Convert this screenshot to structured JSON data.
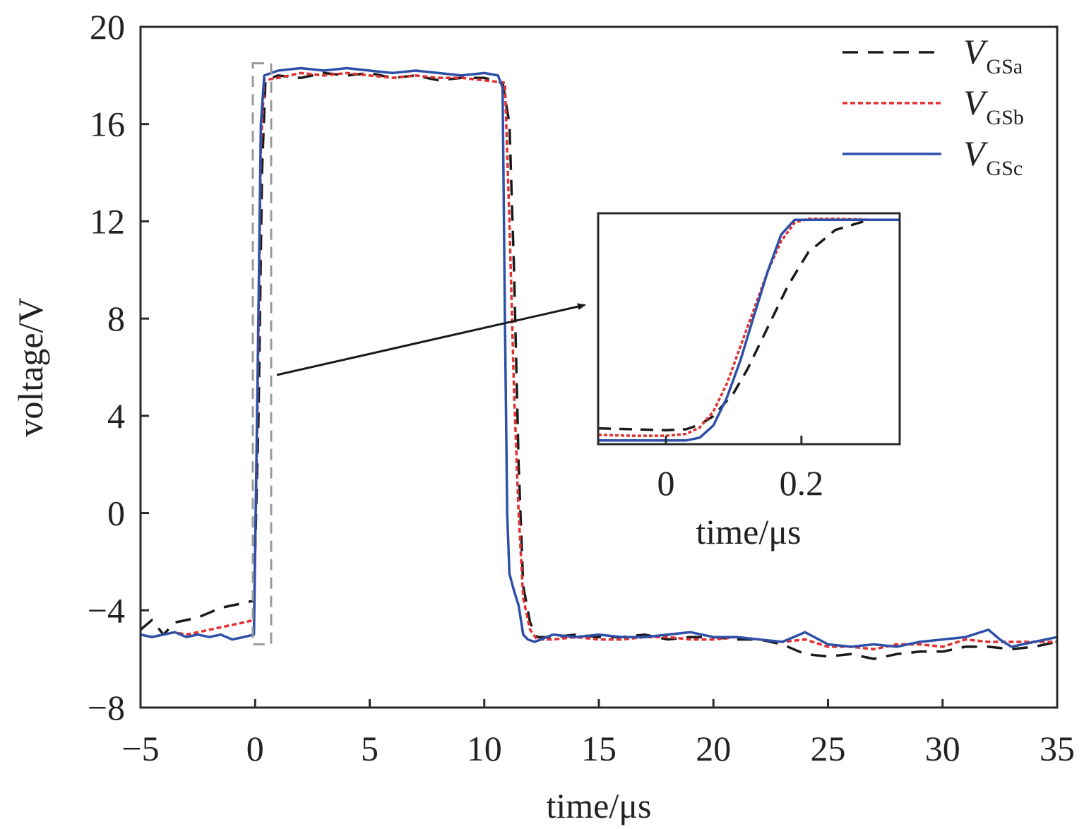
{
  "chart_data": {
    "type": "line",
    "xlabel": "time/μs",
    "ylabel": "voltage/V",
    "xlim": [
      -5,
      35
    ],
    "ylim": [
      -8,
      20
    ],
    "xticks": [
      -5,
      0,
      5,
      10,
      15,
      20,
      25,
      30,
      35
    ],
    "yticks": [
      -8,
      -4,
      0,
      4,
      8,
      12,
      16,
      20
    ],
    "xtick_labels": [
      "−5",
      "0",
      "5",
      "10",
      "15",
      "20",
      "25",
      "30",
      "35"
    ],
    "ytick_labels": [
      "−8",
      "−4",
      "0",
      "4",
      "8",
      "12",
      "16",
      "20"
    ],
    "legend_position": "top-right",
    "series": [
      {
        "name": "V",
        "subscript": "GSa",
        "color": "#1a1a1a",
        "style": "dashed",
        "x": [
          -5,
          -4.5,
          -4,
          -3.5,
          -3,
          -2.5,
          -2,
          -1.5,
          -1,
          -0.5,
          -0.05,
          0.15,
          0.3,
          0.45,
          1,
          2,
          3,
          4,
          5,
          6,
          7,
          8,
          9,
          10,
          10.8,
          11.1,
          11.3,
          11.5,
          11.7,
          12,
          12.3,
          13,
          14,
          15,
          16,
          17,
          18,
          19,
          20,
          21,
          22,
          23,
          24,
          25,
          26,
          27,
          28,
          29,
          30,
          31,
          32,
          33,
          34,
          35
        ],
        "y": [
          -4.8,
          -4.4,
          -5.0,
          -4.5,
          -4.4,
          -4.3,
          -4.1,
          -3.9,
          -3.8,
          -3.7,
          -3.6,
          4,
          14,
          17.8,
          18.0,
          17.9,
          18.1,
          18.0,
          18.1,
          17.9,
          18.0,
          17.8,
          17.9,
          17.9,
          17.7,
          16,
          10,
          2,
          -3,
          -4.5,
          -5.1,
          -5.1,
          -5.0,
          -5.1,
          -5.1,
          -5.0,
          -5.2,
          -5.1,
          -5.1,
          -5.2,
          -5.2,
          -5.4,
          -5.8,
          -5.9,
          -5.8,
          -6.0,
          -5.8,
          -5.7,
          -5.7,
          -5.5,
          -5.5,
          -5.6,
          -5.5,
          -5.3
        ]
      },
      {
        "name": "V",
        "subscript": "GSb",
        "color": "#e03030",
        "style": "dotted",
        "x": [
          -5,
          -4.5,
          -4,
          -3.5,
          -3,
          -2.5,
          -2,
          -1.5,
          -1,
          -0.5,
          -0.05,
          0.1,
          0.25,
          0.4,
          1,
          2,
          3,
          4,
          5,
          6,
          7,
          8,
          9,
          10,
          10.9,
          11.1,
          11.3,
          11.5,
          11.7,
          12,
          12.3,
          13,
          14,
          15,
          16,
          17,
          18,
          19,
          20,
          21,
          22,
          23,
          24,
          25,
          26,
          27,
          28,
          29,
          30,
          31,
          32,
          33,
          34,
          35
        ],
        "y": [
          -5.0,
          -5.1,
          -5.0,
          -4.9,
          -5.0,
          -4.9,
          -4.8,
          -4.7,
          -4.6,
          -4.5,
          -4.4,
          4,
          15,
          17.8,
          17.9,
          18.1,
          18.0,
          18.1,
          18.0,
          17.9,
          18.0,
          17.9,
          17.9,
          17.8,
          17.7,
          12,
          5,
          0,
          -3.5,
          -4.8,
          -5.2,
          -5.2,
          -5.1,
          -5.2,
          -5.2,
          -5.1,
          -5.1,
          -5.2,
          -5.2,
          -5.1,
          -5.2,
          -5.3,
          -5.2,
          -5.5,
          -5.5,
          -5.6,
          -5.4,
          -5.4,
          -5.5,
          -5.2,
          -5.3,
          -5.3,
          -5.3,
          -5.3
        ]
      },
      {
        "name": "V",
        "subscript": "GSc",
        "color": "#2d4fa8",
        "style": "solid",
        "x": [
          -5,
          -4.5,
          -4,
          -3.5,
          -3,
          -2.5,
          -2,
          -1.5,
          -1,
          -0.5,
          -0.05,
          0.1,
          0.25,
          0.4,
          1,
          2,
          3,
          4,
          5,
          6,
          7,
          8,
          9,
          10,
          10.6,
          10.8,
          10.9,
          11.0,
          11.1,
          11.3,
          11.5,
          11.7,
          11.9,
          12.2,
          13,
          14,
          15,
          16,
          17,
          18,
          19,
          20,
          21,
          22,
          23,
          23.5,
          24,
          25,
          26,
          27,
          28,
          29,
          30,
          31,
          32,
          32.5,
          33,
          34,
          35
        ],
        "y": [
          -5.0,
          -5.1,
          -5.0,
          -4.9,
          -5.1,
          -5.0,
          -5.1,
          -5.0,
          -5.2,
          -5.1,
          -5.0,
          5,
          16,
          18.0,
          18.2,
          18.3,
          18.2,
          18.3,
          18.2,
          18.1,
          18.2,
          18.1,
          18.0,
          18.1,
          18.0,
          17.5,
          8,
          0,
          -2.5,
          -3.2,
          -3.8,
          -5.0,
          -5.2,
          -5.3,
          -5.0,
          -5.1,
          -5.0,
          -5.1,
          -5.1,
          -5.0,
          -4.9,
          -5.1,
          -5.1,
          -5.2,
          -5.3,
          -5.1,
          -4.9,
          -5.4,
          -5.5,
          -5.4,
          -5.5,
          -5.3,
          -5.2,
          -5.1,
          -4.8,
          -5.2,
          -5.5,
          -5.3,
          -5.1
        ]
      }
    ],
    "zoom_box": {
      "x": [
        -0.1,
        0.7
      ],
      "y": [
        -5.4,
        18.5
      ]
    },
    "inset": {
      "xlim": [
        -0.1,
        0.345
      ],
      "ylim": [
        -6.0,
        18.8
      ],
      "xticks": [
        0,
        0.2
      ],
      "xtick_labels": [
        "0",
        "0.2"
      ],
      "xlabel": "time/μs",
      "series": [
        {
          "ref": "GSa",
          "x": [
            -0.1,
            -0.05,
            0,
            0.03,
            0.05,
            0.07,
            0.1,
            0.12,
            0.15,
            0.18,
            0.21,
            0.25,
            0.3,
            0.345
          ],
          "y": [
            -4.3,
            -4.4,
            -4.5,
            -4.4,
            -3.9,
            -3.0,
            -0.5,
            2.0,
            6.5,
            11.0,
            14.6,
            17.0,
            18.1,
            18.1
          ]
        },
        {
          "ref": "GSb",
          "x": [
            -0.1,
            -0.05,
            0,
            0.03,
            0.05,
            0.07,
            0.09,
            0.11,
            0.13,
            0.15,
            0.17,
            0.19,
            0.21,
            0.25,
            0.3,
            0.345
          ],
          "y": [
            -5.0,
            -5.1,
            -5.1,
            -4.9,
            -4.2,
            -2.5,
            0.5,
            4.5,
            8.5,
            12.5,
            15.8,
            17.8,
            18.2,
            18.2,
            18.1,
            18.1
          ]
        },
        {
          "ref": "GSc",
          "x": [
            -0.1,
            -0.05,
            0,
            0.03,
            0.05,
            0.07,
            0.09,
            0.11,
            0.13,
            0.15,
            0.17,
            0.19,
            0.25,
            0.3,
            0.345
          ],
          "y": [
            -5.6,
            -5.6,
            -5.6,
            -5.6,
            -5.3,
            -4.0,
            -1.0,
            3.0,
            7.8,
            12.5,
            16.5,
            18.1,
            18.1,
            18.1,
            18.1
          ]
        }
      ]
    }
  }
}
